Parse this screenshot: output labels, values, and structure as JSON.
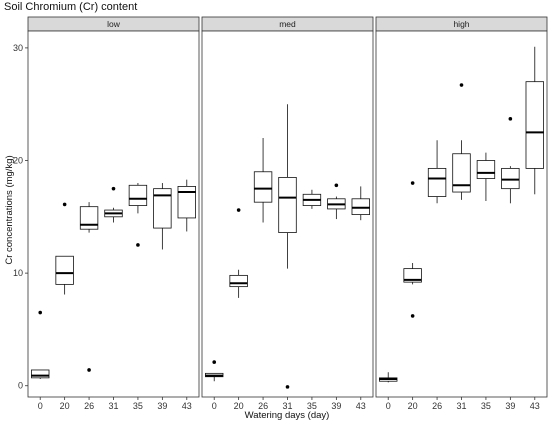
{
  "chart_data": {
    "type": "boxplot",
    "title": "Soil Chromium (Cr) content",
    "xlabel": "Watering days (day)",
    "ylabel": "Cr concentrations (mg/kg)",
    "ylim": [
      -1,
      31.5
    ],
    "yticks": [
      0,
      10,
      20,
      30
    ],
    "categories": [
      "0",
      "20",
      "26",
      "31",
      "35",
      "39",
      "43"
    ],
    "grid": false,
    "panels": [
      {
        "name": "low",
        "boxes": [
          {
            "x": "0",
            "whisker_low": 0.6,
            "q1": 0.7,
            "median": 0.9,
            "q3": 1.4,
            "whisker_high": 1.4,
            "outliers": [
              6.5
            ]
          },
          {
            "x": "20",
            "whisker_low": 8.1,
            "q1": 9.0,
            "median": 10.0,
            "q3": 11.5,
            "whisker_high": 11.5,
            "outliers": [
              16.1
            ]
          },
          {
            "x": "26",
            "whisker_low": 13.6,
            "q1": 13.9,
            "median": 14.3,
            "q3": 15.9,
            "whisker_high": 16.3,
            "outliers": [
              1.4
            ]
          },
          {
            "x": "31",
            "whisker_low": 14.5,
            "q1": 15.0,
            "median": 15.3,
            "q3": 15.6,
            "whisker_high": 15.8,
            "outliers": [
              17.5
            ]
          },
          {
            "x": "35",
            "whisker_low": 15.3,
            "q1": 16.0,
            "median": 16.6,
            "q3": 17.8,
            "whisker_high": 18.0,
            "outliers": [
              12.5
            ]
          },
          {
            "x": "39",
            "whisker_low": 12.1,
            "q1": 14.0,
            "median": 16.9,
            "q3": 17.5,
            "whisker_high": 18.0,
            "outliers": []
          },
          {
            "x": "43",
            "whisker_low": 13.7,
            "q1": 14.9,
            "median": 17.2,
            "q3": 17.7,
            "whisker_high": 18.3,
            "outliers": []
          }
        ]
      },
      {
        "name": "med",
        "boxes": [
          {
            "x": "0",
            "whisker_low": 0.4,
            "q1": 0.8,
            "median": 0.9,
            "q3": 1.1,
            "whisker_high": 1.1,
            "outliers": [
              2.1
            ]
          },
          {
            "x": "20",
            "whisker_low": 7.8,
            "q1": 8.8,
            "median": 9.1,
            "q3": 9.8,
            "whisker_high": 10.3,
            "outliers": [
              15.6
            ]
          },
          {
            "x": "26",
            "whisker_low": 14.5,
            "q1": 16.3,
            "median": 17.5,
            "q3": 19.0,
            "whisker_high": 22.0,
            "outliers": []
          },
          {
            "x": "31",
            "whisker_low": 10.4,
            "q1": 13.6,
            "median": 16.7,
            "q3": 18.5,
            "whisker_high": 25.0,
            "outliers": [
              -0.1
            ]
          },
          {
            "x": "35",
            "whisker_low": 15.7,
            "q1": 16.0,
            "median": 16.5,
            "q3": 17.0,
            "whisker_high": 17.4,
            "outliers": []
          },
          {
            "x": "39",
            "whisker_low": 14.8,
            "q1": 15.7,
            "median": 16.1,
            "q3": 16.6,
            "whisker_high": 16.8,
            "outliers": [
              17.8
            ]
          },
          {
            "x": "43",
            "whisker_low": 14.7,
            "q1": 15.2,
            "median": 15.8,
            "q3": 16.6,
            "whisker_high": 17.7,
            "outliers": []
          }
        ]
      },
      {
        "name": "high",
        "boxes": [
          {
            "x": "0",
            "whisker_low": 0.3,
            "q1": 0.4,
            "median": 0.6,
            "q3": 0.7,
            "whisker_high": 1.2,
            "outliers": []
          },
          {
            "x": "20",
            "whisker_low": 9.0,
            "q1": 9.2,
            "median": 9.4,
            "q3": 10.4,
            "whisker_high": 10.9,
            "outliers": [
              6.2,
              18.0
            ]
          },
          {
            "x": "26",
            "whisker_low": 16.2,
            "q1": 16.8,
            "median": 18.4,
            "q3": 19.3,
            "whisker_high": 21.8,
            "outliers": []
          },
          {
            "x": "31",
            "whisker_low": 16.5,
            "q1": 17.2,
            "median": 17.8,
            "q3": 20.6,
            "whisker_high": 21.8,
            "outliers": [
              26.7
            ]
          },
          {
            "x": "35",
            "whisker_low": 16.4,
            "q1": 18.4,
            "median": 18.9,
            "q3": 20.0,
            "whisker_high": 20.7,
            "outliers": []
          },
          {
            "x": "39",
            "whisker_low": 16.2,
            "q1": 17.5,
            "median": 18.3,
            "q3": 19.3,
            "whisker_high": 19.5,
            "outliers": [
              23.7
            ]
          },
          {
            "x": "43",
            "whisker_low": 17.0,
            "q1": 19.3,
            "median": 22.5,
            "q3": 27.0,
            "whisker_high": 30.1,
            "outliers": []
          }
        ]
      }
    ]
  }
}
